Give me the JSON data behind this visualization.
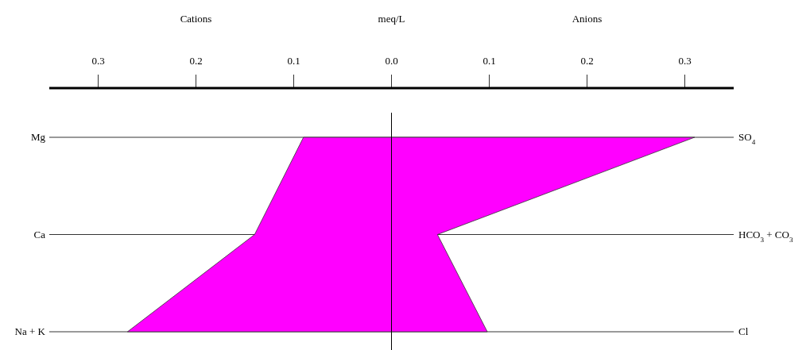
{
  "chart_data": {
    "type": "area",
    "orientation": "horizontal",
    "xlabel": "meq/L",
    "categories": [
      "Mg",
      "Ca",
      "Na + K"
    ],
    "y2_categories": [
      "SO$_{4}$",
      "HCO$_{3}$ + CO$_{3}$",
      "Cl"
    ],
    "series": [
      {
        "name": "Cations",
        "color": "#ff00ff",
        "values": [
          -0.09,
          -0.14,
          -0.27
        ]
      },
      {
        "name": "Anions",
        "color": "#ff00ff",
        "values": [
          0.31,
          0.047,
          0.098
        ]
      }
    ],
    "xlim": [
      -0.35,
      0.35
    ],
    "xticks": [
      {
        "value": -0.3,
        "label": "0.3"
      },
      {
        "value": -0.2,
        "label": "0.2"
      },
      {
        "value": -0.1,
        "label": "0.1"
      },
      {
        "value": 0,
        "label": "0.0"
      },
      0.1,
      0.2,
      0.3
    ],
    "grid": "y",
    "ref_lines": [
      {
        "axis": "x",
        "value": 0
      }
    ]
  }
}
